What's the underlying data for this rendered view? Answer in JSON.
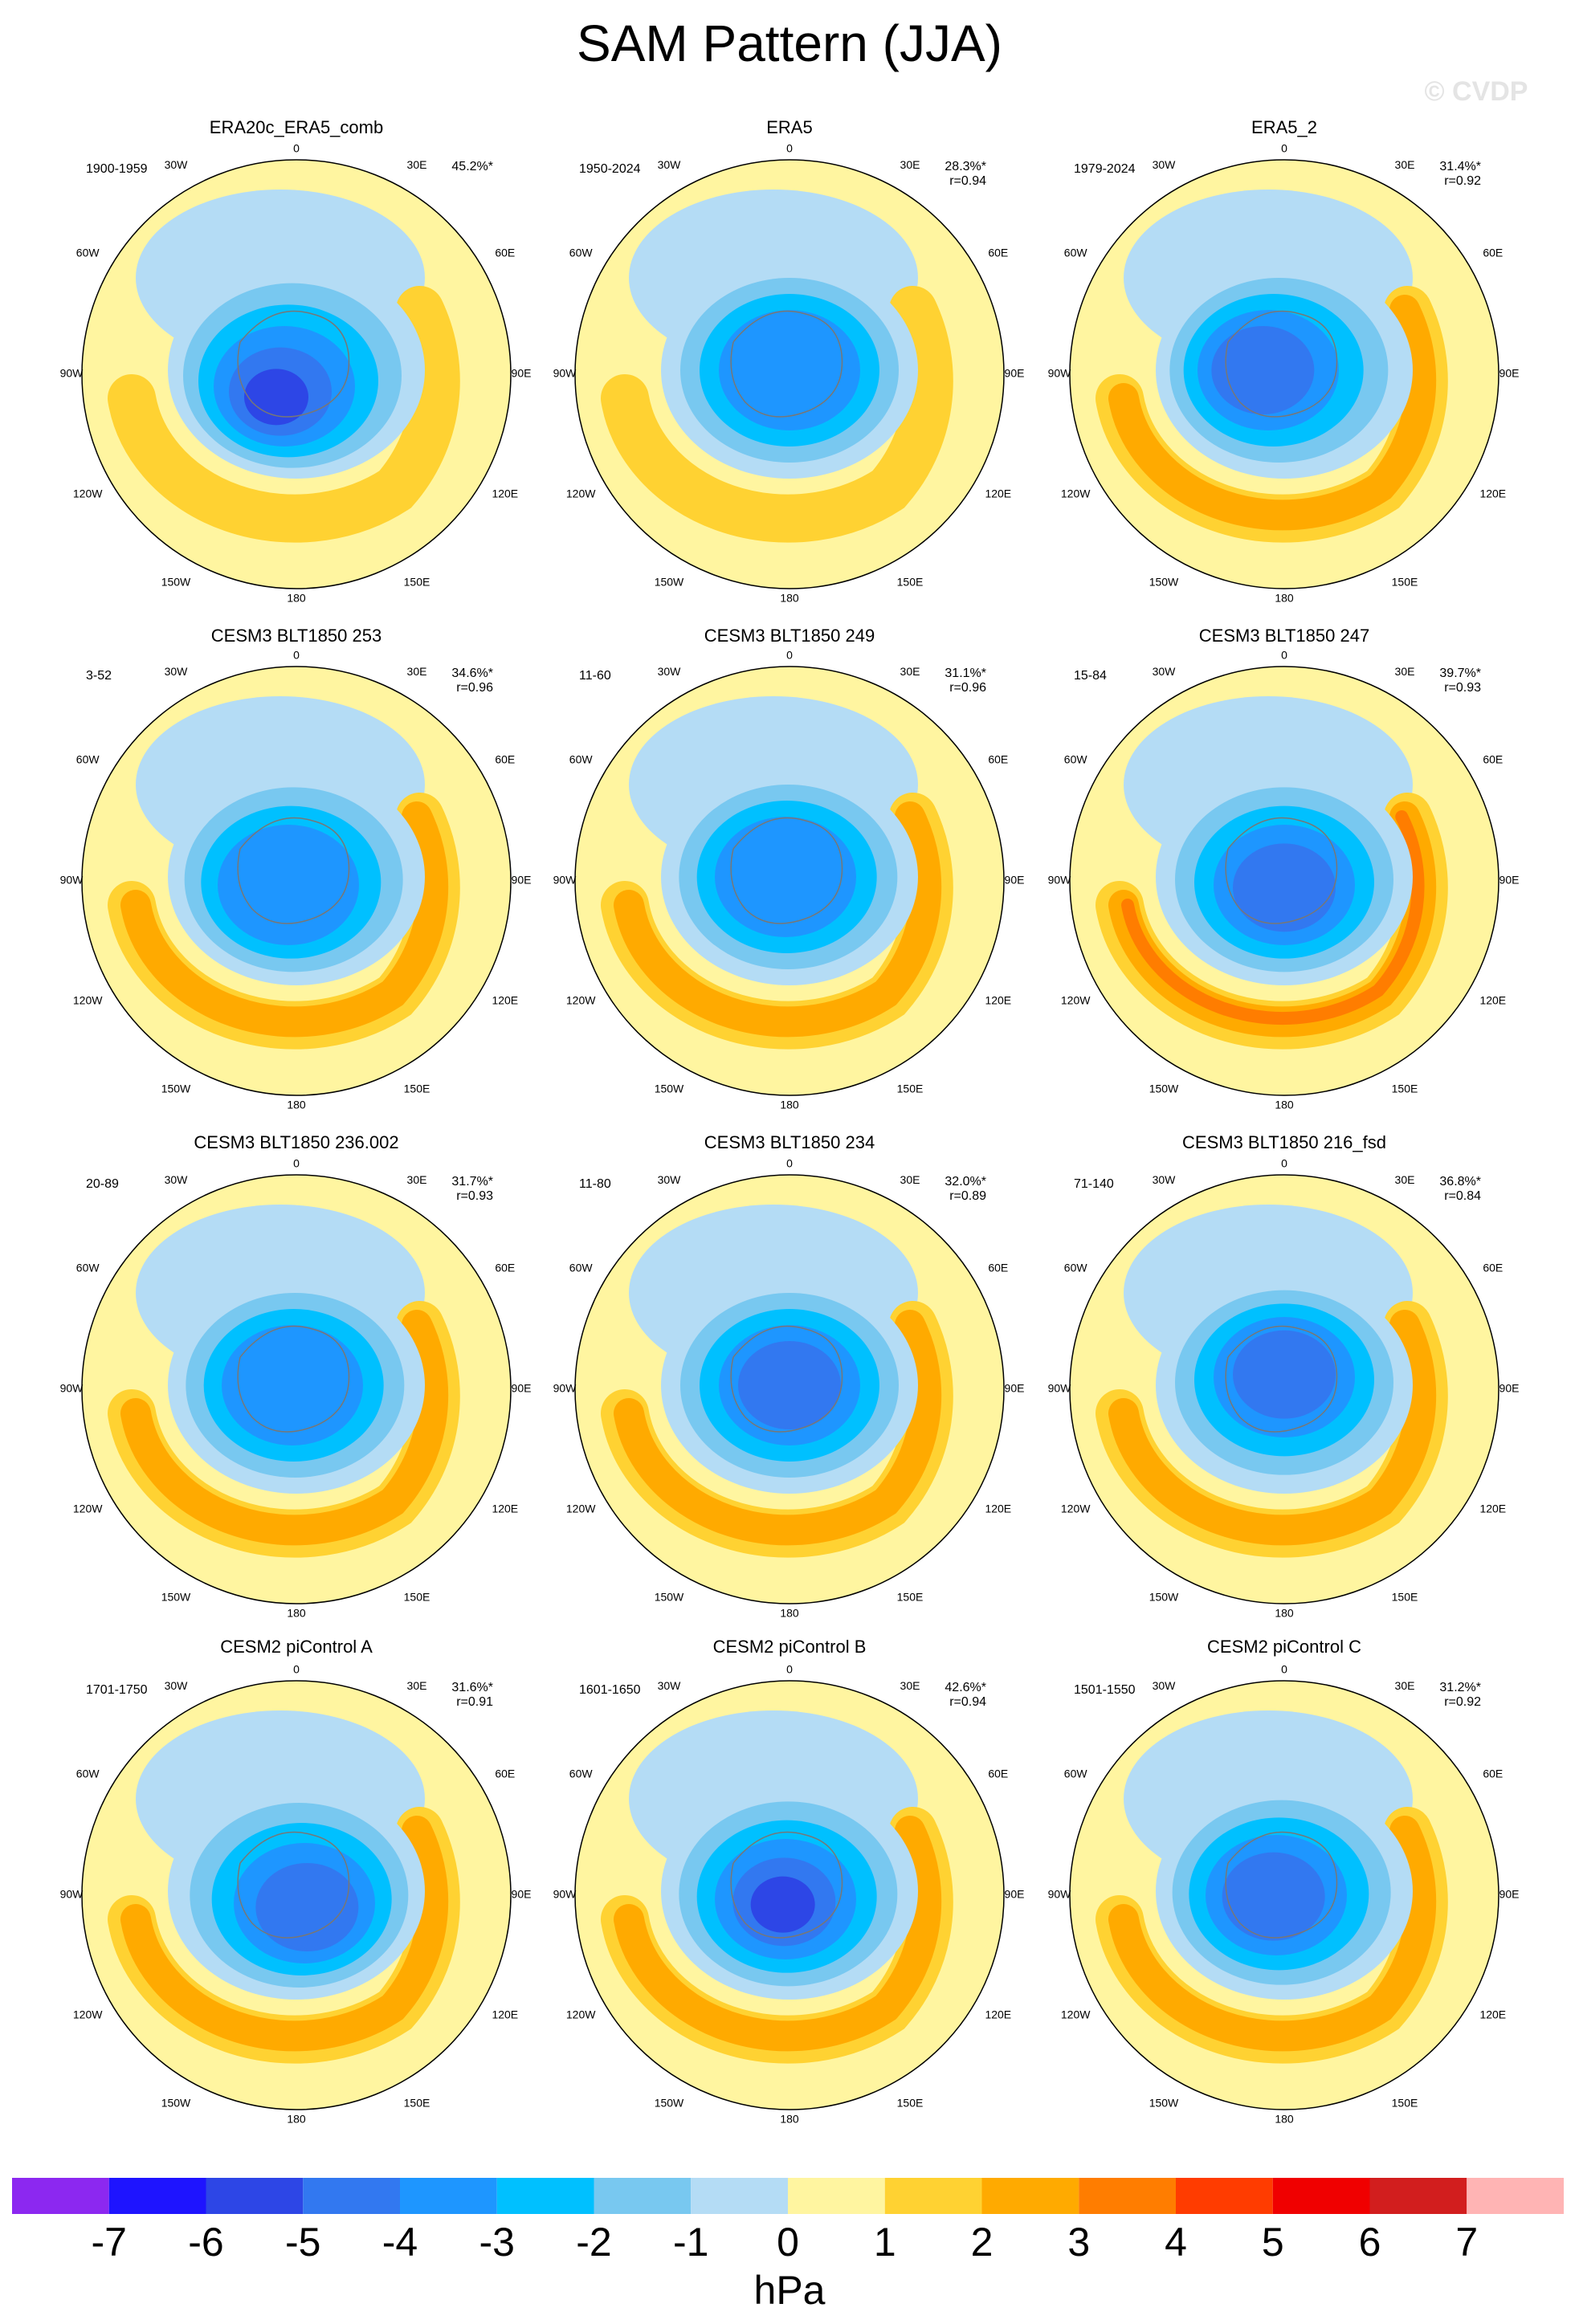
{
  "title": "SAM Pattern (JJA)",
  "watermark": "© CVDP",
  "lon_labels": [
    "0",
    "30E",
    "60E",
    "90E",
    "120E",
    "150E",
    "180",
    "150W",
    "120W",
    "90W",
    "60W",
    "30W"
  ],
  "panels": [
    {
      "title": "ERA20c_ERA5_comb",
      "period": "1900-1959",
      "stats": [
        "45.2%*"
      ]
    },
    {
      "title": "ERA5",
      "period": "1950-2024",
      "stats": [
        "28.3%*",
        "r=0.94"
      ]
    },
    {
      "title": "ERA5_2",
      "period": "1979-2024",
      "stats": [
        "31.4%*",
        "r=0.92"
      ]
    },
    {
      "title": "CESM3 BLT1850 253",
      "period": "3-52",
      "stats": [
        "34.6%*",
        "r=0.96"
      ]
    },
    {
      "title": "CESM3 BLT1850 249",
      "period": "11-60",
      "stats": [
        "31.1%*",
        "r=0.96"
      ]
    },
    {
      "title": "CESM3 BLT1850 247",
      "period": "15-84",
      "stats": [
        "39.7%*",
        "r=0.93"
      ]
    },
    {
      "title": "CESM3 BLT1850 236.002",
      "period": "20-89",
      "stats": [
        "31.7%*",
        "r=0.93"
      ]
    },
    {
      "title": "CESM3 BLT1850 234",
      "period": "11-80",
      "stats": [
        "32.0%*",
        "r=0.89"
      ]
    },
    {
      "title": "CESM3 BLT1850 216_fsd",
      "period": "71-140",
      "stats": [
        "36.8%*",
        "r=0.84"
      ]
    },
    {
      "title": "CESM2 piControl A",
      "period": "1701-1750",
      "stats": [
        "31.6%*",
        "r=0.91"
      ]
    },
    {
      "title": "CESM2 piControl B",
      "period": "1601-1650",
      "stats": [
        "42.6%*",
        "r=0.94"
      ]
    },
    {
      "title": "CESM2 piControl C",
      "period": "1501-1550",
      "stats": [
        "31.2%*",
        "r=0.92"
      ]
    }
  ],
  "colorbar": {
    "colors": [
      "#8c28f0",
      "#1e14ff",
      "#2d46e6",
      "#3278f0",
      "#1e96ff",
      "#00c0ff",
      "#78c8f0",
      "#b4dcf5",
      "#fff5a0",
      "#ffd232",
      "#ffaa00",
      "#ff7d00",
      "#ff3c00",
      "#f00000",
      "#d21e1e",
      "#ffb4b4"
    ],
    "ticks": [
      -7,
      -6,
      -5,
      -4,
      -3,
      -2,
      -1,
      0,
      1,
      2,
      3,
      4,
      5,
      6,
      7
    ],
    "unit": "hPa"
  }
}
